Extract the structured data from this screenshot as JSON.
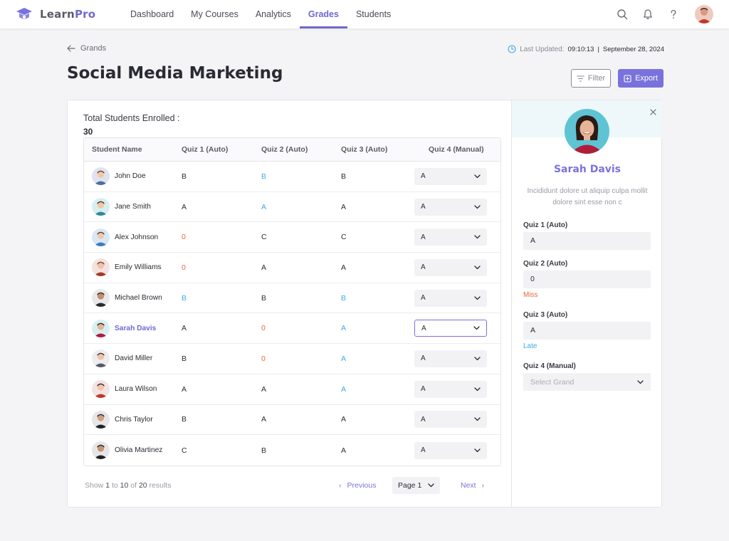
{
  "brand": {
    "name_main": "Learn",
    "name_accent": "Pro",
    "accent_color": "#6f68d0"
  },
  "nav": {
    "links": [
      {
        "label": "Dashboard"
      },
      {
        "label": "My Courses"
      },
      {
        "label": "Analytics"
      },
      {
        "label": "Grades"
      },
      {
        "label": "Students"
      }
    ],
    "active": "Grades",
    "icons": [
      "search-icon",
      "bell-icon",
      "help-icon",
      "user-avatar"
    ]
  },
  "header": {
    "back_label": "Grands",
    "last_updated_label": "Last Updated:",
    "last_updated_time": "09:10:13",
    "separator": "|",
    "last_updated_date": "September 28, 2024",
    "title": "Social Media Marketing",
    "filter_label": "Filter",
    "export_label": "Export"
  },
  "summary": {
    "enrolled_label": "Total Students Enrolled :",
    "enrolled_count": "30"
  },
  "table": {
    "columns": [
      "Student Name",
      "Quiz 1 (Auto)",
      "Quiz 2 (Auto)",
      "Quiz 3 (Auto)",
      "Quiz 4 (Manual)"
    ],
    "rows": [
      {
        "name": "John Doe",
        "q1": "B",
        "q2": "B",
        "q3": "B",
        "q4": "A",
        "q1c": "plain",
        "q2c": "blue",
        "q3c": "plain"
      },
      {
        "name": "Jane Smith",
        "q1": "A",
        "q2": "A",
        "q3": "A",
        "q4": "A",
        "q1c": "plain",
        "q2c": "blue",
        "q3c": "plain"
      },
      {
        "name": "Alex Johnson",
        "q1": "0",
        "q2": "C",
        "q3": "C",
        "q4": "A",
        "q1c": "orange",
        "q2c": "plain",
        "q3c": "plain"
      },
      {
        "name": "Emily Williams",
        "q1": "0",
        "q2": "A",
        "q3": "A",
        "q4": "A",
        "q1c": "orange",
        "q2c": "plain",
        "q3c": "plain"
      },
      {
        "name": "Michael Brown",
        "q1": "B",
        "q2": "B",
        "q3": "B",
        "q4": "A",
        "q1c": "blue",
        "q2c": "plain",
        "q3c": "blue"
      },
      {
        "name": "Sarah Davis",
        "q1": "A",
        "q2": "0",
        "q3": "A",
        "q4": "A",
        "q1c": "plain",
        "q2c": "orange",
        "q3c": "blue",
        "selected": true
      },
      {
        "name": "David Miller",
        "q1": "B",
        "q2": "0",
        "q3": "A",
        "q4": "A",
        "q1c": "plain",
        "q2c": "orange",
        "q3c": "blue"
      },
      {
        "name": "Laura Wilson",
        "q1": "A",
        "q2": "A",
        "q3": "A",
        "q4": "A",
        "q1c": "plain",
        "q2c": "plain",
        "q3c": "blue"
      },
      {
        "name": "Chris Taylor",
        "q1": "B",
        "q2": "A",
        "q3": "A",
        "q4": "A",
        "q1c": "plain",
        "q2c": "plain",
        "q3c": "plain"
      },
      {
        "name": "Olivia Martinez",
        "q1": "C",
        "q2": "B",
        "q3": "A",
        "q4": "A",
        "q1c": "plain",
        "q2c": "plain",
        "q3c": "plain"
      }
    ]
  },
  "pagination": {
    "show": "Show",
    "from": "1",
    "to_word": "to",
    "to": "10",
    "of_word": "of",
    "total": "20",
    "results": "results",
    "previous": "Previous",
    "page": "Page 1",
    "next": "Next"
  },
  "panel": {
    "name": "Sarah Davis",
    "description": "Incididunt dolore ut aliquip culpa  mollit dolore sint esse non c",
    "fields": [
      {
        "label": "Quiz 1 (Auto)",
        "value": "A",
        "note": ""
      },
      {
        "label": "Quiz 2 (Auto)",
        "value": "0",
        "note": "Miss"
      },
      {
        "label": "Quiz 3 (Auto)",
        "value": "A",
        "note": "Late"
      }
    ],
    "manual_label": "Quiz 4 (Manual)",
    "manual_placeholder": "Select Grand"
  },
  "colors": {
    "accent": "#7a72dc",
    "blue_grade": "#3fa9e0",
    "orange_grade": "#e2683c"
  }
}
